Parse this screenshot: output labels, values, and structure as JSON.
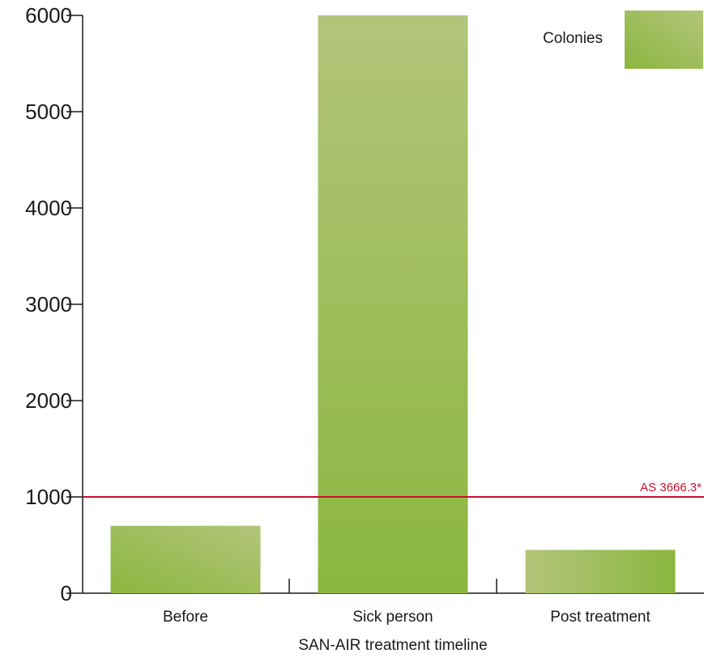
{
  "chart_data": {
    "type": "bar",
    "categories": [
      "Before",
      "Sick person",
      "Post treatment"
    ],
    "series": [
      {
        "name": "Colonies",
        "values": [
          700,
          6000,
          450
        ]
      }
    ],
    "xlabel": "SAN-AIR treatment timeline",
    "ylabel": "",
    "ylim": [
      0,
      6000
    ],
    "yticks": [
      0,
      1000,
      2000,
      3000,
      4000,
      5000,
      6000
    ],
    "grid": false,
    "legend_position": "top-right",
    "reference_line": {
      "value": 1000,
      "label": "AS 3666.3*",
      "color": "#c8102e"
    },
    "bar_colors": {
      "light": "#b3c47a",
      "dark": "#8ab73f"
    }
  }
}
